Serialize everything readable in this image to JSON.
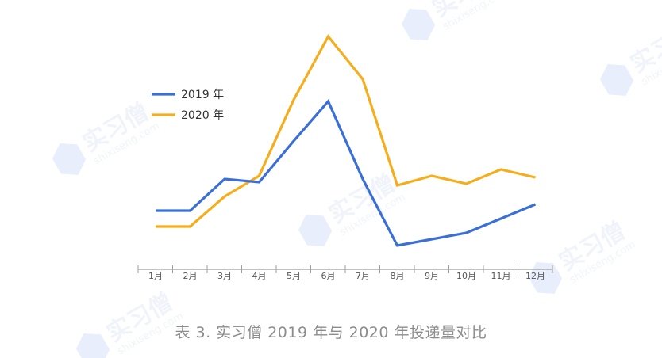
{
  "chart_data": {
    "type": "line",
    "categories": [
      "1月",
      "2月",
      "3月",
      "4月",
      "5月",
      "6月",
      "7月",
      "8月",
      "9月",
      "10月",
      "11月",
      "12月"
    ],
    "series": [
      {
        "name": "2019 年",
        "color": "#3a6fd8",
        "values": [
          31,
          31,
          51,
          49,
          75,
          100,
          51,
          9,
          13,
          17,
          26,
          35
        ]
      },
      {
        "name": "2020 年",
        "color": "#f5ad1b",
        "values": [
          21,
          21,
          40,
          53,
          101,
          141,
          114,
          47,
          53,
          48,
          57,
          52
        ]
      }
    ],
    "ylim": [
      0,
      150
    ],
    "grid": false,
    "legend_position": "top-left",
    "caption": "表 3. 实习僧 2019 年与 2020 年投递量对比"
  },
  "watermark": {
    "brand": "实习僧",
    "domain": "shixiseng.com"
  }
}
